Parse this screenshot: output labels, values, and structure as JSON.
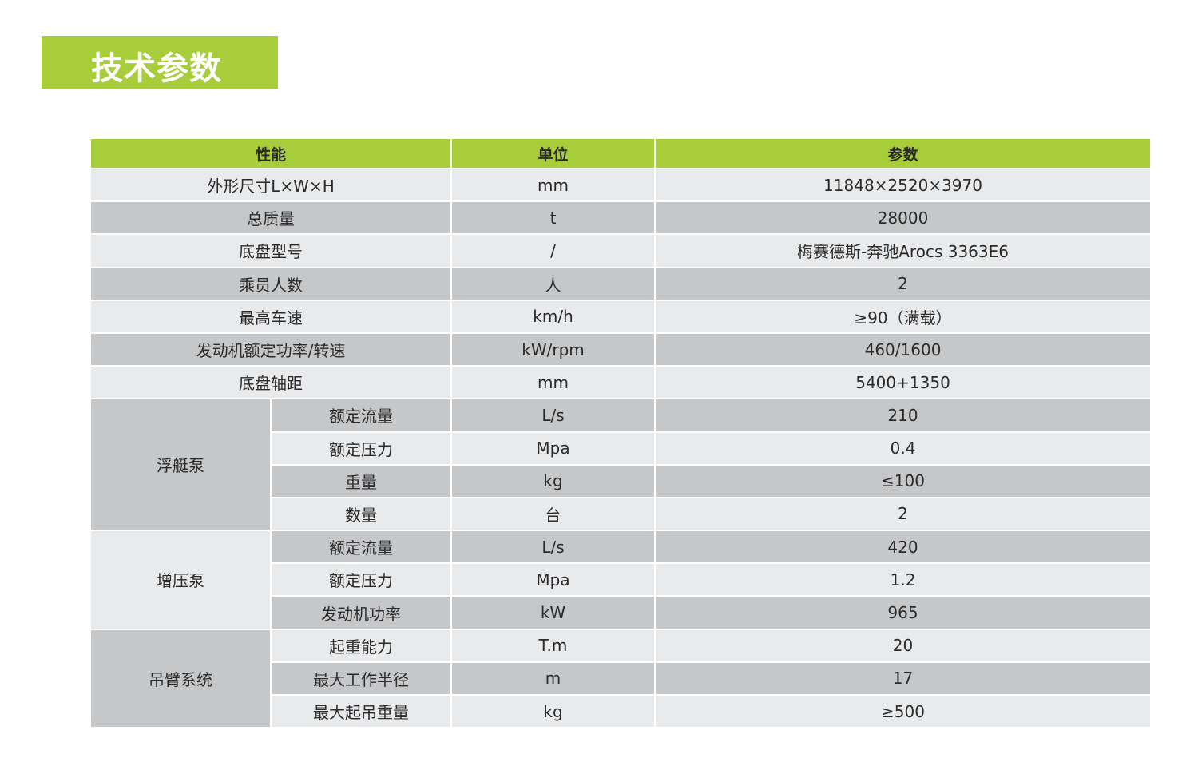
{
  "title": "技术参数",
  "colors": {
    "accent": "#a8cd3a",
    "row_dark": "#c6c7c9",
    "row_light": "#e9eaec"
  },
  "table": {
    "headers": [
      "性能",
      "单位",
      "参数"
    ],
    "rows": [
      {
        "name": "外形尺寸L×W×H",
        "unit": "mm",
        "value": "11848×2520×3970"
      },
      {
        "name": "总质量",
        "unit": "t",
        "value": "28000"
      },
      {
        "name": "底盘型号",
        "unit": "/",
        "value": "梅赛德斯-奔驰Arocs 3363E6"
      },
      {
        "name": "乘员人数",
        "unit": "人",
        "value": "2"
      },
      {
        "name": "最高车速",
        "unit": "km/h",
        "value": "≥90（满载）"
      },
      {
        "name": "发动机额定功率/转速",
        "unit": "kW/rpm",
        "value": "460/1600"
      },
      {
        "name": "底盘轴距",
        "unit": "mm",
        "value": "5400+1350"
      }
    ],
    "groups": [
      {
        "name": "浮艇泵",
        "rows": [
          {
            "name": "额定流量",
            "unit": "L/s",
            "value": "210"
          },
          {
            "name": "额定压力",
            "unit": "Mpa",
            "value": "0.4"
          },
          {
            "name": "重量",
            "unit": "kg",
            "value": "≤100"
          },
          {
            "name": "数量",
            "unit": "台",
            "value": "2"
          }
        ]
      },
      {
        "name": "增压泵",
        "rows": [
          {
            "name": "额定流量",
            "unit": "L/s",
            "value": "420"
          },
          {
            "name": "额定压力",
            "unit": "Mpa",
            "value": "1.2"
          },
          {
            "name": "发动机功率",
            "unit": "kW",
            "value": "965"
          }
        ]
      },
      {
        "name": "吊臂系统",
        "rows": [
          {
            "name": "起重能力",
            "unit": "T.m",
            "value": "20"
          },
          {
            "name": "最大工作半径",
            "unit": "m",
            "value": "17"
          },
          {
            "name": "最大起吊重量",
            "unit": "kg",
            "value": "≥500"
          }
        ]
      }
    ]
  }
}
